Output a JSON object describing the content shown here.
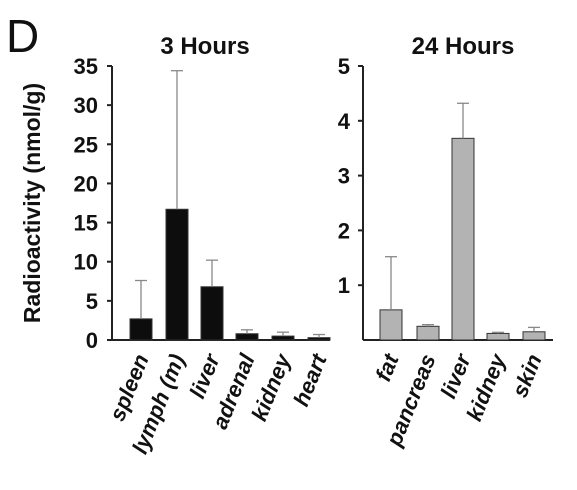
{
  "panel_label": "D",
  "ylabel": "Radioactivity (nmol/g)",
  "colors": {
    "left_bars": "#0d0d0d",
    "right_bars": "#b3b3b3",
    "axis": "#222222",
    "error": "#888888"
  },
  "chart_data": [
    {
      "type": "bar",
      "title": "3 Hours",
      "ylabel": "Radioactivity (nmol/g)",
      "ylim": [
        0,
        35
      ],
      "yticks": [
        "0",
        "5",
        "10",
        "15",
        "20",
        "25",
        "30",
        "35"
      ],
      "categories": [
        "spleen",
        "lymph (m)",
        "liver",
        "adrenal",
        "kidney",
        "heart"
      ],
      "values": [
        2.7,
        16.7,
        6.8,
        0.8,
        0.5,
        0.3
      ],
      "error_upper": [
        7.6,
        34.4,
        10.2,
        1.3,
        1.0,
        0.7
      ],
      "bar_color": "#0d0d0d",
      "grid": false
    },
    {
      "type": "bar",
      "title": "24 Hours",
      "ylim": [
        0,
        5
      ],
      "yticks": [
        "1",
        "2",
        "3",
        "4",
        "5"
      ],
      "categories": [
        "fat",
        "pancreas",
        "liver",
        "kidney",
        "skin"
      ],
      "values": [
        0.55,
        0.25,
        3.68,
        0.12,
        0.15
      ],
      "error_upper": [
        1.52,
        0.28,
        4.32,
        0.14,
        0.23
      ],
      "bar_color": "#b3b3b3",
      "grid": false
    }
  ]
}
